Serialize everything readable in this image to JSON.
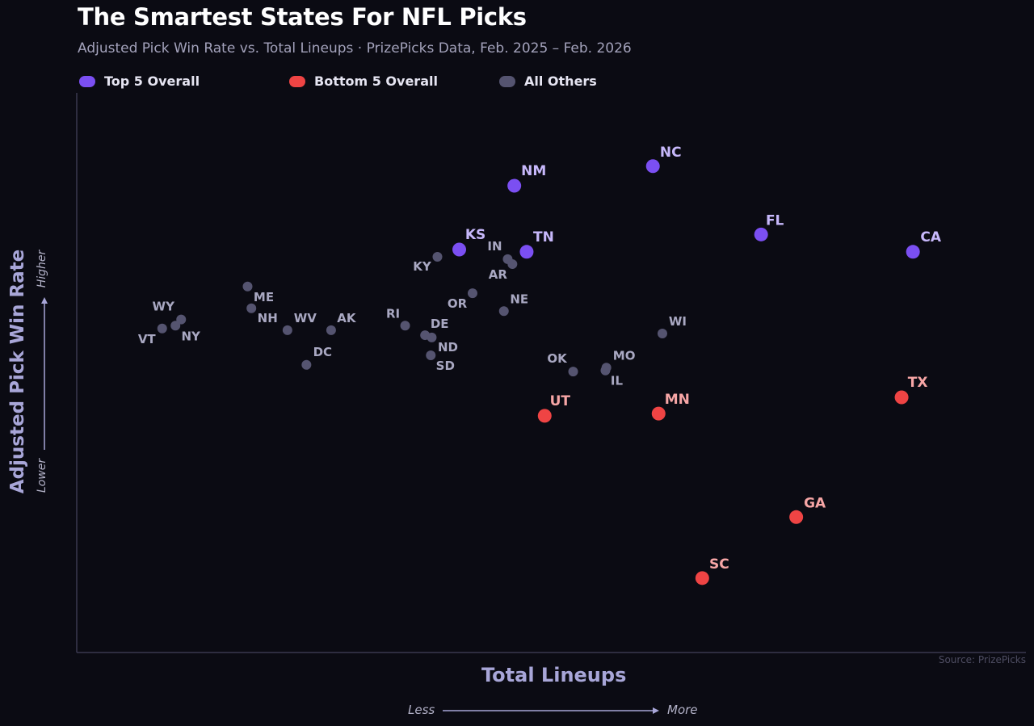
{
  "chart_data": {
    "type": "scatter",
    "title": "The Smartest States For NFL Picks",
    "subtitle": "Adjusted Pick Win Rate vs. Total Lineups  ·  PrizePicks Data, Feb. 2025 – Feb. 2026",
    "xlabel": "Total Lineups",
    "ylabel": "Adjusted Pick Win Rate",
    "x_low": "Less",
    "x_high": "More",
    "y_low": "Lower",
    "y_high": "Higher",
    "source": "Source: PrizePicks",
    "xlim": [
      0,
      100
    ],
    "ylim": [
      0,
      100
    ],
    "grid": false,
    "legend_placement": "top-left",
    "legend": [
      {
        "group": "top",
        "label": "Top 5 Overall"
      },
      {
        "group": "bottom",
        "label": "Bottom 5 Overall"
      },
      {
        "group": "other",
        "label": "All Others"
      }
    ],
    "colors": {
      "top": "#7b4ff2",
      "top_label": "#c7b8fb",
      "bottom": "#ef4444",
      "bottom_label": "#f7a6a6",
      "other": "#555470",
      "other_label": "#a9a8c2",
      "axis": "#3a3950"
    },
    "points": [
      {
        "state": "NM",
        "group": "top",
        "x": 46.1,
        "y": 83.4
      },
      {
        "state": "NC",
        "group": "top",
        "x": 60.7,
        "y": 86.9
      },
      {
        "state": "FL",
        "group": "top",
        "x": 72.1,
        "y": 74.7
      },
      {
        "state": "CA",
        "group": "top",
        "x": 88.1,
        "y": 71.6
      },
      {
        "state": "KS",
        "group": "top",
        "x": 40.3,
        "y": 72.0
      },
      {
        "state": "TN",
        "group": "top",
        "x": 47.4,
        "y": 71.6
      },
      {
        "state": "TX",
        "group": "bottom",
        "x": 86.9,
        "y": 45.6
      },
      {
        "state": "UT",
        "group": "bottom",
        "x": 49.3,
        "y": 42.3
      },
      {
        "state": "MN",
        "group": "bottom",
        "x": 61.3,
        "y": 42.7
      },
      {
        "state": "GA",
        "group": "bottom",
        "x": 75.8,
        "y": 24.2
      },
      {
        "state": "SC",
        "group": "bottom",
        "x": 65.9,
        "y": 13.3
      },
      {
        "state": "KY",
        "group": "other",
        "x": 38.0,
        "y": 70.7
      },
      {
        "state": "IN",
        "group": "other",
        "x": 45.4,
        "y": 70.3
      },
      {
        "state": "AR",
        "group": "other",
        "x": 45.9,
        "y": 69.4
      },
      {
        "state": "OR",
        "group": "other",
        "x": 41.7,
        "y": 64.2
      },
      {
        "state": "NE",
        "group": "other",
        "x": 45.0,
        "y": 61.0
      },
      {
        "state": "RI",
        "group": "other",
        "x": 34.6,
        "y": 58.4
      },
      {
        "state": "DE",
        "group": "other",
        "x": 36.7,
        "y": 56.7
      },
      {
        "state": "ND",
        "group": "other",
        "x": 37.4,
        "y": 56.3
      },
      {
        "state": "SD",
        "group": "other",
        "x": 37.3,
        "y": 53.1
      },
      {
        "state": "ME",
        "group": "other",
        "x": 18.0,
        "y": 65.4
      },
      {
        "state": "NH",
        "group": "other",
        "x": 18.4,
        "y": 61.5
      },
      {
        "state": "WV",
        "group": "other",
        "x": 22.2,
        "y": 57.6
      },
      {
        "state": "AK",
        "group": "other",
        "x": 26.8,
        "y": 57.6
      },
      {
        "state": "DC",
        "group": "other",
        "x": 24.2,
        "y": 51.4
      },
      {
        "state": "WY",
        "group": "other",
        "x": 11.0,
        "y": 59.5
      },
      {
        "state": "VT",
        "group": "other",
        "x": 9.0,
        "y": 57.9
      },
      {
        "state": "NY",
        "group": "other",
        "x": 10.4,
        "y": 58.4
      },
      {
        "state": "OK",
        "group": "other",
        "x": 52.3,
        "y": 50.2
      },
      {
        "state": "MO",
        "group": "other",
        "x": 55.8,
        "y": 50.9
      },
      {
        "state": "IL",
        "group": "other",
        "x": 55.7,
        "y": 50.4
      },
      {
        "state": "WI",
        "group": "other",
        "x": 61.7,
        "y": 57.0
      }
    ]
  }
}
